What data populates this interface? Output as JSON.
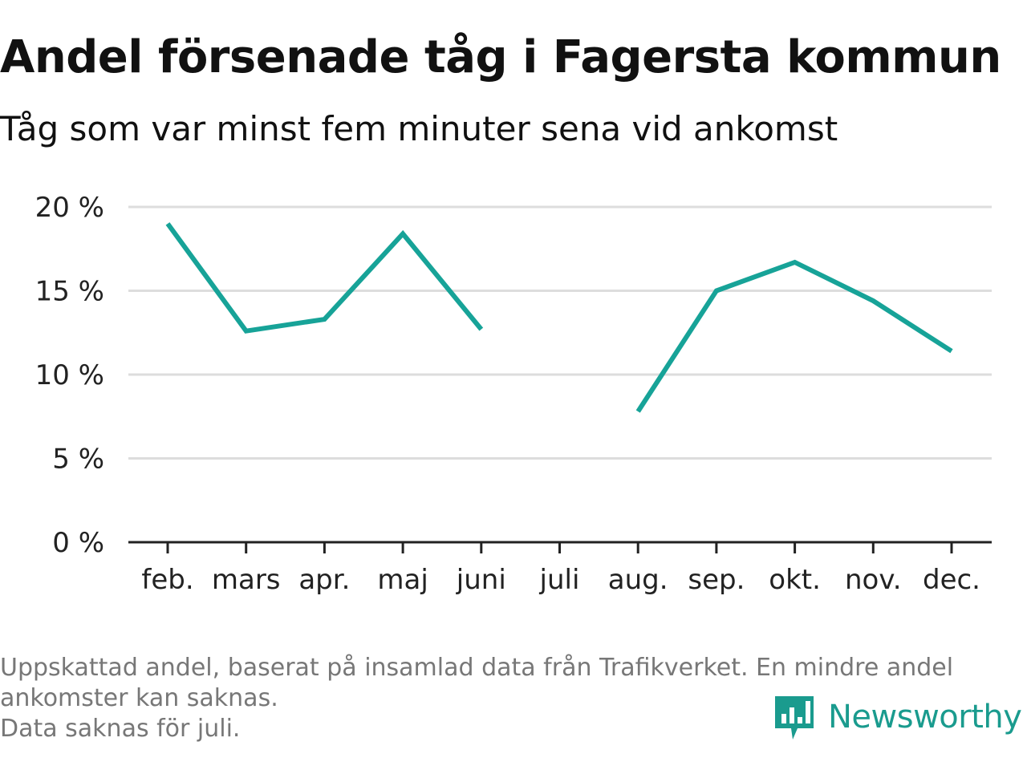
{
  "title": "Andel försenade tåg i Fagersta kommun",
  "subtitle": "Tåg som var minst fem minuter sena vid ankomst",
  "footnote": {
    "line1": "Uppskattad andel, baserat på insamlad data från Trafikverket. En mindre andel",
    "line2": "ankomster kan saknas.",
    "line3": "Data saknas för juli."
  },
  "brand": {
    "name": "Newsworthy",
    "icon": "newsworthy-logo-icon",
    "color": "#1a9b8e"
  },
  "chart_data": {
    "type": "line",
    "categories": [
      "feb.",
      "mars",
      "apr.",
      "maj",
      "juni",
      "juli",
      "aug.",
      "sep.",
      "okt.",
      "nov.",
      "dec."
    ],
    "series": [
      {
        "values": [
          19.0,
          12.6,
          13.3,
          18.4,
          12.7,
          null,
          7.8,
          15.0,
          16.7,
          14.4,
          11.4
        ]
      }
    ],
    "yticks": [
      "0 %",
      "5 %",
      "10 %",
      "15 %",
      "20 %"
    ],
    "ylim": [
      0,
      20
    ],
    "grid": true,
    "line_color": "#17a398",
    "grid_color": "#dddddd",
    "axis_color": "#222222"
  }
}
